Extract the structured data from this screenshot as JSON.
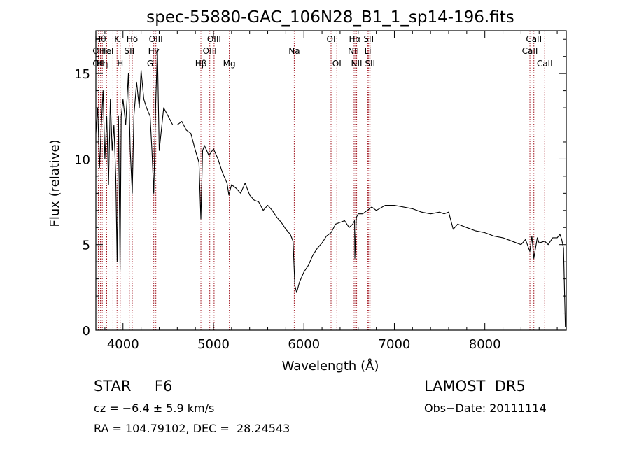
{
  "chart_data": {
    "type": "line",
    "title": "spec-55880-GAC_106N28_B1_1_sp14-196.fits",
    "xlabel": "Wavelength (Å)",
    "ylabel": "Flux (relative)",
    "xlim": [
      3700,
      8900
    ],
    "ylim": [
      0,
      17.5
    ],
    "x_ticks": [
      4000,
      5000,
      6000,
      7000,
      8000
    ],
    "y_ticks": [
      0,
      5,
      10,
      15
    ],
    "line_color": "#000000",
    "marker_color": "#a0141e",
    "series": [
      {
        "x": [
          3700,
          3720,
          3740,
          3760,
          3780,
          3800,
          3820,
          3840,
          3860,
          3880,
          3900,
          3920,
          3935,
          3950,
          3968,
          3980,
          4000,
          4030,
          4060,
          4080,
          4102,
          4120,
          4150,
          4180,
          4200,
          4230,
          4260,
          4300,
          4320,
          4340,
          4360,
          4380,
          4400,
          4450,
          4500,
          4550,
          4600,
          4650,
          4700,
          4750,
          4800,
          4840,
          4861,
          4880,
          4900,
          4950,
          5000,
          5050,
          5100,
          5150,
          5170,
          5200,
          5250,
          5300,
          5350,
          5400,
          5450,
          5500,
          5550,
          5600,
          5650,
          5700,
          5750,
          5800,
          5850,
          5880,
          5900,
          5920,
          5950,
          6000,
          6050,
          6100,
          6150,
          6200,
          6250,
          6300,
          6350,
          6400,
          6450,
          6500,
          6540,
          6560,
          6563,
          6580,
          6600,
          6650,
          6700,
          6750,
          6800,
          6900,
          7000,
          7100,
          7200,
          7300,
          7400,
          7500,
          7550,
          7600,
          7650,
          7700,
          7800,
          7900,
          8000,
          8100,
          8200,
          8300,
          8400,
          8450,
          8498,
          8520,
          8542,
          8580,
          8600,
          8662,
          8700,
          8750,
          8800,
          8830,
          8850,
          8870,
          8890
        ],
        "y": [
          11.5,
          13.0,
          9.5,
          12.0,
          14.0,
          10.0,
          12.5,
          8.5,
          13.5,
          10.5,
          12.0,
          9.0,
          4.0,
          12.5,
          3.5,
          12.5,
          13.5,
          12.0,
          15.0,
          10.5,
          8.0,
          12.5,
          14.5,
          13.0,
          15.2,
          13.5,
          13.0,
          12.5,
          10.5,
          8.0,
          13.0,
          16.5,
          10.5,
          13.0,
          12.5,
          12.0,
          12.0,
          12.2,
          11.7,
          11.5,
          10.5,
          9.8,
          6.5,
          10.5,
          10.8,
          10.2,
          10.6,
          10.0,
          9.2,
          8.6,
          7.9,
          8.5,
          8.3,
          8.0,
          8.6,
          7.9,
          7.6,
          7.5,
          7.0,
          7.3,
          7.0,
          6.6,
          6.3,
          5.9,
          5.6,
          5.2,
          2.6,
          2.2,
          2.8,
          3.4,
          3.8,
          4.4,
          4.8,
          5.1,
          5.5,
          5.7,
          6.2,
          6.3,
          6.4,
          6.0,
          6.2,
          6.4,
          4.2,
          6.6,
          6.8,
          6.8,
          7.0,
          7.2,
          7.0,
          7.3,
          7.3,
          7.2,
          7.1,
          6.9,
          6.8,
          6.9,
          6.8,
          6.9,
          5.9,
          6.2,
          6.0,
          5.8,
          5.7,
          5.5,
          5.4,
          5.2,
          5.0,
          5.3,
          4.6,
          5.5,
          4.2,
          5.4,
          5.1,
          5.2,
          5.0,
          5.4,
          5.4,
          5.6,
          5.3,
          4.8,
          0.2
        ]
      }
    ],
    "line_markers": [
      {
        "x": 3727,
        "label": "OII",
        "row": 2
      },
      {
        "x": 3727,
        "label": "OII",
        "row": 3
      },
      {
        "x": 3750,
        "label": "Hθ",
        "row": 1
      },
      {
        "x": 3771,
        "label": "Hη",
        "row": 3
      },
      {
        "x": 3820,
        "label": "HeI",
        "row": 2
      },
      {
        "x": 3889,
        "label": "",
        "row": 0
      },
      {
        "x": 3934,
        "label": "K",
        "row": 1
      },
      {
        "x": 3969,
        "label": "H",
        "row": 3
      },
      {
        "x": 4070,
        "label": "SII",
        "row": 2
      },
      {
        "x": 4102,
        "label": "Hδ",
        "row": 1
      },
      {
        "x": 4300,
        "label": "G",
        "row": 3
      },
      {
        "x": 4340,
        "label": "Hγ",
        "row": 2
      },
      {
        "x": 4363,
        "label": "OIII",
        "row": 1
      },
      {
        "x": 4861,
        "label": "Hβ",
        "row": 3
      },
      {
        "x": 4959,
        "label": "OIII",
        "row": 2
      },
      {
        "x": 5007,
        "label": "OIII",
        "row": 1
      },
      {
        "x": 5175,
        "label": "Mg",
        "row": 3
      },
      {
        "x": 5893,
        "label": "Na",
        "row": 2
      },
      {
        "x": 6300,
        "label": "OI",
        "row": 1
      },
      {
        "x": 6364,
        "label": "OI",
        "row": 3
      },
      {
        "x": 6548,
        "label": "NII",
        "row": 2
      },
      {
        "x": 6563,
        "label": "Hα",
        "row": 1
      },
      {
        "x": 6583,
        "label": "NII",
        "row": 3
      },
      {
        "x": 6707,
        "label": "Li",
        "row": 2
      },
      {
        "x": 6716,
        "label": "SII",
        "row": 1
      },
      {
        "x": 6731,
        "label": "SII",
        "row": 3
      },
      {
        "x": 8498,
        "label": "CaII",
        "row": 2
      },
      {
        "x": 8542,
        "label": "CaII",
        "row": 1
      },
      {
        "x": 8662,
        "label": "CaII",
        "row": 3
      }
    ]
  },
  "info": {
    "class_text": "STAR     F6",
    "survey_text": "LAMOST  DR5",
    "cz_text": "cz = −6.4 ± 5.9 km/s",
    "obs_date_text": "Obs−Date: 20111114",
    "coords_text": "RA = 104.79102, DEC =  28.24543"
  }
}
